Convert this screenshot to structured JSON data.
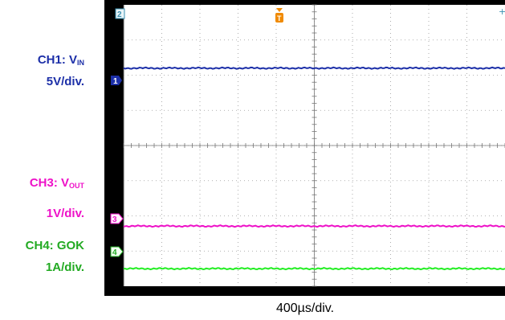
{
  "labels": {
    "ch1_prefix": "CH1: V",
    "ch1_sub": "IN",
    "ch1_scale": "5V/div.",
    "ch3_prefix": "CH3: V",
    "ch3_sub": "OUT",
    "ch3_scale": "1V/div.",
    "ch4_name": "CH4: GOK",
    "ch4_scale": "1A/div."
  },
  "timebase": "400µs/div.",
  "markers": {
    "top_channel": "2",
    "ch1": "1",
    "ch3": "3",
    "ch4": "4",
    "trigger": "T"
  },
  "colors": {
    "ch1": "#1c2fa8",
    "ch3": "#ee11c8",
    "ch4": "#22ee22",
    "background": "#ffffff",
    "grid": "#9a9a9a",
    "trigger": "#f08a00"
  },
  "chart_data": {
    "type": "line",
    "x_divisions": 10,
    "y_divisions": 8,
    "grid": true,
    "series": [
      {
        "name": "CH1: VIN",
        "color": "#1c2fa8",
        "level_div": 3.2,
        "offset_div": 2.0
      },
      {
        "name": "CH3: VOUT",
        "color": "#ee11c8",
        "level_div": 2.0,
        "offset_div": -2.3
      },
      {
        "name": "CH4: GOK",
        "color": "#22ee22",
        "level_div": 1.0,
        "offset_div": -3.5
      }
    ]
  }
}
